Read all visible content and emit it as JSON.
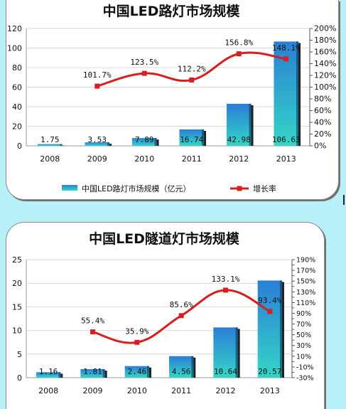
{
  "chart_data": [
    {
      "type": "bar",
      "title": "中国LED路灯市场规模",
      "categories": [
        "2008",
        "2009",
        "2010",
        "2011",
        "2012",
        "2013"
      ],
      "series": [
        {
          "name": "中国LED路灯市场规模（亿元）",
          "type": "bar",
          "axis": "left",
          "values": [
            1.75,
            3.53,
            7.89,
            16.74,
            42.98,
            106.63
          ],
          "labels": [
            "1.75",
            "3.53",
            "7.89",
            "16.74",
            "42.98",
            "106.63"
          ]
        },
        {
          "name": "增长率",
          "type": "line",
          "axis": "right",
          "values": [
            null,
            101.7,
            123.5,
            112.2,
            156.8,
            148.1
          ],
          "labels": [
            "",
            "101.7%",
            "123.5%",
            "112.2%",
            "156.8%",
            "148.1%"
          ]
        }
      ],
      "ylim": [
        0,
        120
      ],
      "yticks": [
        "0",
        "20",
        "40",
        "60",
        "80",
        "100",
        "120"
      ],
      "y2lim": [
        0,
        200
      ],
      "y2ticks": [
        "0%",
        "20%",
        "40%",
        "60%",
        "80%",
        "100%",
        "120%",
        "140%",
        "160%",
        "180%",
        "200%"
      ],
      "grid": true,
      "legend": "bottom"
    },
    {
      "type": "bar",
      "title": "中国LED隧道灯市场规模",
      "categories": [
        "2008",
        "2009",
        "2010",
        "2011",
        "2012",
        "2013"
      ],
      "series": [
        {
          "type": "bar",
          "axis": "left",
          "values": [
            1.16,
            1.81,
            2.46,
            4.56,
            10.64,
            20.57
          ],
          "labels": [
            "1.16",
            "1.81",
            "2.46",
            "4.56",
            "10.64",
            "20.57"
          ]
        },
        {
          "type": "line",
          "axis": "right",
          "values": [
            null,
            55.4,
            35.9,
            85.6,
            133.1,
            93.4
          ],
          "labels": [
            "",
            "55.4%",
            "35.9%",
            "85.6%",
            "133.1%",
            "93.4%"
          ]
        }
      ],
      "ylim": [
        0,
        25
      ],
      "yticks": [
        "0",
        "5",
        "10",
        "15",
        "20",
        "25"
      ],
      "y2lim": [
        -30,
        190
      ],
      "y2ticks": [
        "-30%",
        "-10%",
        "10%",
        "30%",
        "50%",
        "70%",
        "90%",
        "110%",
        "130%",
        "150%",
        "170%",
        "190%"
      ],
      "y2ticks_minor": [
        "-20%",
        "0%",
        "20%",
        "40%",
        "60%",
        "80%",
        "100%",
        "120%",
        "140%",
        "160%",
        "180%"
      ],
      "grid": true,
      "legend": "none"
    }
  ],
  "colors": {
    "bar_top": "#2a7fd4",
    "bar_bottom": "#35d6c8",
    "line": "#d81e1e",
    "marker": "#d81e1e",
    "grid": "#d9d9d9",
    "plot_border": "#9a9a9a"
  }
}
